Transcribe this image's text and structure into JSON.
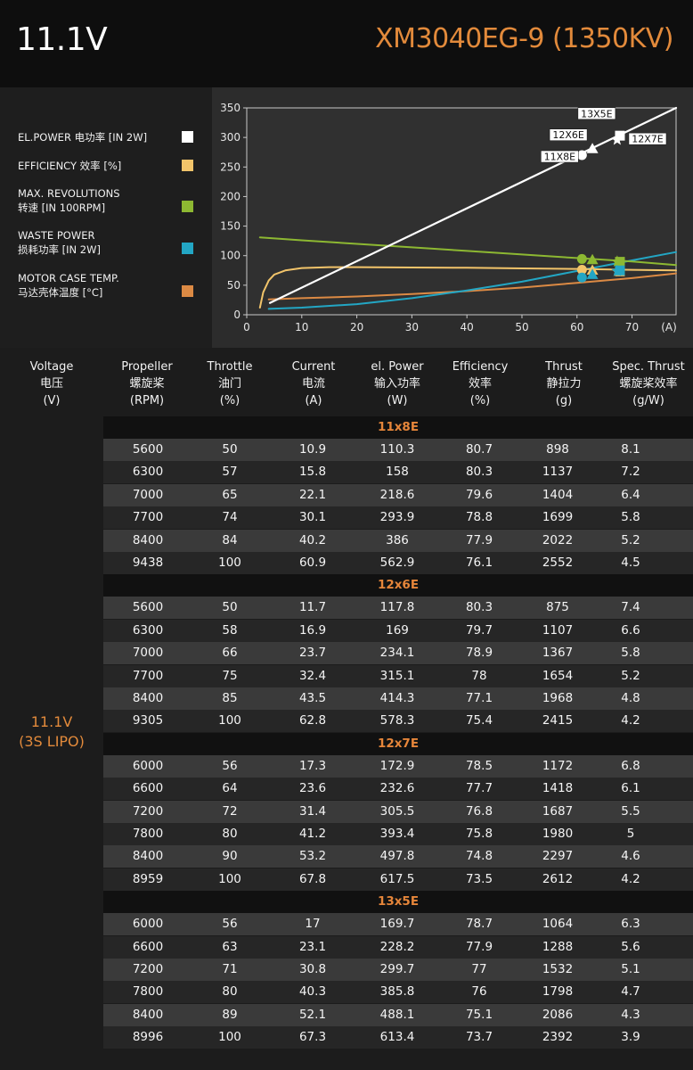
{
  "header": {
    "voltage": "11.1V",
    "model": "XM3040EG-9 (1350KV)"
  },
  "legend": [
    {
      "line1": "EL.POWER 电功率 [IN 2W]",
      "line2": "",
      "color": "#ffffff",
      "icon": "square"
    },
    {
      "line1": "EFFICIENCY 效率 [%]",
      "line2": "",
      "color": "#f2c46a",
      "icon": "square"
    },
    {
      "line1": "MAX. REVOLUTIONS",
      "line2": "转速 [IN 100RPM]",
      "color": "#8db832",
      "icon": "square"
    },
    {
      "line1": "WASTE POWER",
      "line2": "损耗功率 [IN 2W]",
      "color": "#23a6c4",
      "icon": "square"
    },
    {
      "line1": "MOTOR CASE TEMP.",
      "line2": "马达壳体温度 [°C]",
      "color": "#dc8a44",
      "icon": "square"
    }
  ],
  "chart_data": {
    "type": "line",
    "x_unit": "(A)",
    "xlim": [
      0,
      78
    ],
    "ylim": [
      0,
      350
    ],
    "x_ticks": [
      0,
      10,
      20,
      30,
      40,
      50,
      60,
      70
    ],
    "y_ticks": [
      0,
      50,
      100,
      150,
      200,
      250,
      300,
      350
    ],
    "grid": false,
    "series": [
      {
        "key": "power",
        "color": "#ffffff",
        "x": [
          4.2,
          78
        ],
        "y": [
          20,
          350
        ]
      },
      {
        "key": "efficiency",
        "color": "#f2c46a",
        "x": [
          2.4,
          3,
          4,
          5,
          7,
          10,
          15,
          20,
          30,
          40,
          50,
          60,
          70,
          78
        ],
        "y": [
          12,
          38,
          58,
          68,
          75,
          79,
          80.5,
          80.5,
          80,
          79.5,
          78.5,
          77.5,
          76,
          75
        ]
      },
      {
        "key": "revolutions",
        "color": "#8db832",
        "x": [
          2.4,
          10,
          20,
          30,
          40,
          50,
          60,
          70,
          78
        ],
        "y": [
          131,
          126,
          120,
          114,
          108,
          102,
          96,
          90,
          84
        ]
      },
      {
        "key": "waste",
        "color": "#23a6c4",
        "x": [
          4,
          10,
          20,
          30,
          40,
          50,
          60,
          70,
          78
        ],
        "y": [
          10,
          12,
          18,
          28,
          41,
          56,
          74,
          92,
          106
        ]
      },
      {
        "key": "temperature",
        "color": "#dc8a44",
        "x": [
          4,
          10,
          20,
          30,
          40,
          50,
          60,
          70,
          78
        ],
        "y": [
          26,
          28,
          31,
          35,
          40,
          46,
          54,
          62,
          70
        ]
      }
    ],
    "markers": [
      {
        "prop": "11X8E",
        "shape": "circle",
        "x": 60.9,
        "power": 270,
        "efficiency": 76.1,
        "revolutions": 94.4,
        "waste": 63,
        "temperature": 55
      },
      {
        "prop": "12X6E",
        "shape": "triangle",
        "x": 62.8,
        "power": 281,
        "efficiency": 75.4,
        "revolutions": 93.1,
        "waste": 68,
        "temperature": 56
      },
      {
        "prop": "13X5E",
        "shape": "star",
        "x": 67.3,
        "power": 296,
        "efficiency": 73.7,
        "revolutions": 90,
        "waste": 74,
        "temperature": 60
      },
      {
        "prop": "12X7E",
        "shape": "square",
        "x": 67.8,
        "power": 303,
        "efficiency": 73.5,
        "revolutions": 89.6,
        "waste": 75,
        "temperature": 61
      }
    ]
  },
  "table": {
    "headers": [
      {
        "l1": "Voltage",
        "l2": "电压",
        "l3": "(V)"
      },
      {
        "l1": "Propeller",
        "l2": "螺旋桨",
        "l3": "(RPM)"
      },
      {
        "l1": "Throttle",
        "l2": "油门",
        "l3": "(%)"
      },
      {
        "l1": "Current",
        "l2": "电流",
        "l3": "(A)"
      },
      {
        "l1": "el. Power",
        "l2": "输入功率",
        "l3": "(W)"
      },
      {
        "l1": "Efficiency",
        "l2": "效率",
        "l3": "(%)"
      },
      {
        "l1": "Thrust",
        "l2": "静拉力",
        "l3": "(g)"
      },
      {
        "l1": "Spec. Thrust",
        "l2": "螺旋桨效率",
        "l3": "(g/W)"
      }
    ],
    "voltage_label": {
      "l1": "11.1V",
      "l2": "(3S LIPO)"
    },
    "sections": [
      {
        "name": "11x8E",
        "rows": [
          [
            "5600",
            "50",
            "10.9",
            "110.3",
            "80.7",
            "898",
            "8.1"
          ],
          [
            "6300",
            "57",
            "15.8",
            "158",
            "80.3",
            "1137",
            "7.2"
          ],
          [
            "7000",
            "65",
            "22.1",
            "218.6",
            "79.6",
            "1404",
            "6.4"
          ],
          [
            "7700",
            "74",
            "30.1",
            "293.9",
            "78.8",
            "1699",
            "5.8"
          ],
          [
            "8400",
            "84",
            "40.2",
            "386",
            "77.9",
            "2022",
            "5.2"
          ],
          [
            "9438",
            "100",
            "60.9",
            "562.9",
            "76.1",
            "2552",
            "4.5"
          ]
        ]
      },
      {
        "name": "12x6E",
        "rows": [
          [
            "5600",
            "50",
            "11.7",
            "117.8",
            "80.3",
            "875",
            "7.4"
          ],
          [
            "6300",
            "58",
            "16.9",
            "169",
            "79.7",
            "1107",
            "6.6"
          ],
          [
            "7000",
            "66",
            "23.7",
            "234.1",
            "78.9",
            "1367",
            "5.8"
          ],
          [
            "7700",
            "75",
            "32.4",
            "315.1",
            "78",
            "1654",
            "5.2"
          ],
          [
            "8400",
            "85",
            "43.5",
            "414.3",
            "77.1",
            "1968",
            "4.8"
          ],
          [
            "9305",
            "100",
            "62.8",
            "578.3",
            "75.4",
            "2415",
            "4.2"
          ]
        ]
      },
      {
        "name": "12x7E",
        "rows": [
          [
            "6000",
            "56",
            "17.3",
            "172.9",
            "78.5",
            "1172",
            "6.8"
          ],
          [
            "6600",
            "64",
            "23.6",
            "232.6",
            "77.7",
            "1418",
            "6.1"
          ],
          [
            "7200",
            "72",
            "31.4",
            "305.5",
            "76.8",
            "1687",
            "5.5"
          ],
          [
            "7800",
            "80",
            "41.2",
            "393.4",
            "75.8",
            "1980",
            "5"
          ],
          [
            "8400",
            "90",
            "53.2",
            "497.8",
            "74.8",
            "2297",
            "4.6"
          ],
          [
            "8959",
            "100",
            "67.8",
            "617.5",
            "73.5",
            "2612",
            "4.2"
          ]
        ]
      },
      {
        "name": "13x5E",
        "rows": [
          [
            "6000",
            "56",
            "17",
            "169.7",
            "78.7",
            "1064",
            "6.3"
          ],
          [
            "6600",
            "63",
            "23.1",
            "228.2",
            "77.9",
            "1288",
            "5.6"
          ],
          [
            "7200",
            "71",
            "30.8",
            "299.7",
            "77",
            "1532",
            "5.1"
          ],
          [
            "7800",
            "80",
            "40.3",
            "385.8",
            "76",
            "1798",
            "4.7"
          ],
          [
            "8400",
            "89",
            "52.1",
            "488.1",
            "75.1",
            "2086",
            "4.3"
          ],
          [
            "8996",
            "100",
            "67.3",
            "613.4",
            "73.7",
            "2392",
            "3.9"
          ]
        ]
      }
    ]
  }
}
